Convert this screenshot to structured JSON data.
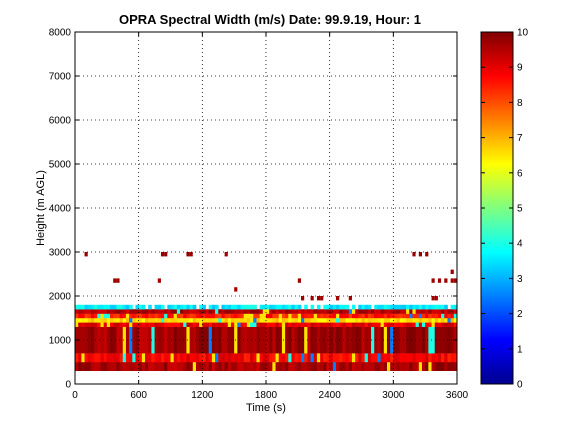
{
  "chart_data": {
    "type": "heatmap",
    "title": "OPRA Spectral Width (m/s)  Date: 99.9.19, Hour: 1",
    "xlabel": "Time (s)",
    "ylabel": "Height (m AGL)",
    "xlim": [
      0,
      3600
    ],
    "ylim": [
      0,
      8000
    ],
    "x_ticks": [
      "0",
      "600",
      "1200",
      "1800",
      "2400",
      "3000",
      "3600"
    ],
    "y_ticks": [
      "0",
      "1000",
      "2000",
      "3000",
      "4000",
      "5000",
      "6000",
      "7000",
      "8000"
    ],
    "grid": true,
    "colorbar": {
      "range": [
        0,
        10
      ],
      "ticks": [
        "0",
        "1",
        "2",
        "3",
        "4",
        "5",
        "6",
        "7",
        "8",
        "9",
        "10"
      ],
      "colormap": "jet"
    },
    "bands": [
      {
        "y_from": 300,
        "y_to": 500,
        "value": 9.6
      },
      {
        "y_from": 500,
        "y_to": 700,
        "value": 8.8
      },
      {
        "y_from": 700,
        "y_to": 1300,
        "value": 9.7
      },
      {
        "y_from": 1300,
        "y_to": 1400,
        "value": 9.0
      },
      {
        "y_from": 1400,
        "y_to": 1500,
        "value": 6.6
      },
      {
        "y_from": 1500,
        "y_to": 1600,
        "value": 8.5
      },
      {
        "y_from": 1600,
        "y_to": 1700,
        "value": 9.5
      },
      {
        "y_from": 1700,
        "y_to": 1800,
        "value": 3.6
      }
    ],
    "sparse_cells": [
      {
        "x": 90,
        "y": 2900,
        "value": 9.8
      },
      {
        "x": 360,
        "y": 2300,
        "value": 9.7
      },
      {
        "x": 390,
        "y": 2300,
        "value": 9.7
      },
      {
        "x": 810,
        "y": 2900,
        "value": 9.8
      },
      {
        "x": 840,
        "y": 2900,
        "value": 9.8
      },
      {
        "x": 780,
        "y": 2300,
        "value": 9.6
      },
      {
        "x": 1050,
        "y": 2900,
        "value": 9.8
      },
      {
        "x": 1080,
        "y": 2900,
        "value": 9.8
      },
      {
        "x": 1410,
        "y": 2900,
        "value": 9.7
      },
      {
        "x": 1500,
        "y": 2100,
        "value": 9.6
      },
      {
        "x": 2100,
        "y": 2300,
        "value": 9.7
      },
      {
        "x": 2130,
        "y": 1900,
        "value": 9.7
      },
      {
        "x": 2220,
        "y": 1900,
        "value": 9.7
      },
      {
        "x": 2280,
        "y": 1900,
        "value": 9.7
      },
      {
        "x": 2310,
        "y": 1900,
        "value": 9.7
      },
      {
        "x": 2460,
        "y": 1900,
        "value": 9.7
      },
      {
        "x": 2580,
        "y": 1900,
        "value": 9.7
      },
      {
        "x": 3180,
        "y": 2900,
        "value": 9.8
      },
      {
        "x": 3240,
        "y": 2900,
        "value": 9.8
      },
      {
        "x": 3300,
        "y": 2900,
        "value": 9.8
      },
      {
        "x": 3360,
        "y": 1900,
        "value": 9.7
      },
      {
        "x": 3390,
        "y": 1900,
        "value": 9.7
      },
      {
        "x": 3360,
        "y": 2300,
        "value": 9.7
      },
      {
        "x": 3420,
        "y": 2300,
        "value": 9.7
      },
      {
        "x": 3480,
        "y": 2300,
        "value": 9.7
      },
      {
        "x": 3540,
        "y": 2300,
        "value": 9.7
      },
      {
        "x": 3540,
        "y": 2500,
        "value": 9.7
      },
      {
        "x": 3570,
        "y": 2300,
        "value": 9.7
      }
    ]
  }
}
